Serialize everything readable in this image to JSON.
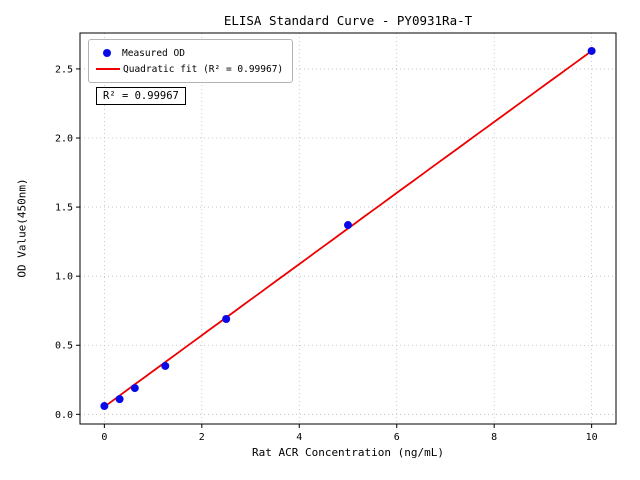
{
  "chart_data": {
    "type": "scatter",
    "title": "ELISA Standard Curve - PY0931Ra-T",
    "xlabel": "Rat ACR Concentration (ng/mL)",
    "ylabel": "OD Value(450nm)",
    "xlim": [
      -0.5,
      10.5
    ],
    "ylim": [
      -0.07,
      2.76
    ],
    "xticks": [
      0,
      2,
      4,
      6,
      8,
      10
    ],
    "xtick_labels": [
      "0",
      "2",
      "4",
      "6",
      "8",
      "10"
    ],
    "yticks": [
      0.0,
      0.5,
      1.0,
      1.5,
      2.0,
      2.5
    ],
    "ytick_labels": [
      "0.0",
      "0.5",
      "1.0",
      "1.5",
      "2.0",
      "2.5"
    ],
    "grid": true,
    "grid_color": "#bbbbbb",
    "legend_position": "upper-left",
    "series": [
      {
        "name": "Measured OD",
        "type": "scatter",
        "color": "#0909e8",
        "x": [
          0,
          0.3125,
          0.625,
          1.25,
          2.5,
          5,
          10
        ],
        "y": [
          0.06,
          0.11,
          0.19,
          0.35,
          0.69,
          1.37,
          2.63
        ]
      },
      {
        "name": "Quadratic fit (R² = 0.99967)",
        "type": "line",
        "color": "#ee0000",
        "fit_coeffs": [
          0.055,
          0.2585,
          -0.0001
        ],
        "x_range": [
          0,
          10
        ]
      }
    ],
    "annotation": {
      "text": "R² = 0.99967"
    }
  }
}
